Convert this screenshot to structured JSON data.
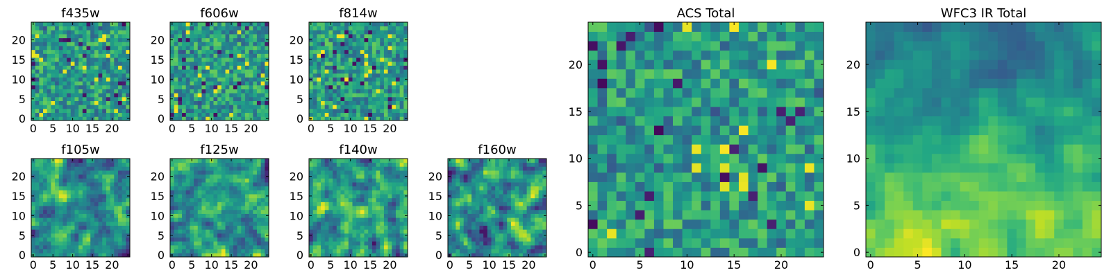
{
  "figure_title": "",
  "chart_data": [
    {
      "type": "heatmap",
      "title": "f435w",
      "colormap": "viridis",
      "grid_size": 25,
      "xlim": [
        0,
        25
      ],
      "ylim": [
        0,
        25
      ],
      "xticks": [
        0,
        5,
        10,
        15,
        20
      ],
      "yticks": [
        0,
        5,
        10,
        15,
        20
      ],
      "style": "noise",
      "seed": 11
    },
    {
      "type": "heatmap",
      "title": "f606w",
      "colormap": "viridis",
      "grid_size": 25,
      "xlim": [
        0,
        25
      ],
      "ylim": [
        0,
        25
      ],
      "xticks": [
        0,
        5,
        10,
        15,
        20
      ],
      "yticks": [
        0,
        5,
        10,
        15,
        20
      ],
      "style": "noise",
      "seed": 23
    },
    {
      "type": "heatmap",
      "title": "f814w",
      "colormap": "viridis",
      "grid_size": 25,
      "xlim": [
        0,
        25
      ],
      "ylim": [
        0,
        25
      ],
      "xticks": [
        0,
        5,
        10,
        15,
        20
      ],
      "yticks": [
        0,
        5,
        10,
        15,
        20
      ],
      "style": "noise",
      "seed": 37
    },
    {
      "type": "heatmap",
      "title": "f105w",
      "colormap": "viridis",
      "grid_size": 25,
      "xlim": [
        0,
        25
      ],
      "ylim": [
        0,
        25
      ],
      "xticks": [
        0,
        5,
        10,
        15,
        20
      ],
      "yticks": [
        0,
        5,
        10,
        15,
        20
      ],
      "style": "smooth",
      "seed": 41
    },
    {
      "type": "heatmap",
      "title": "f125w",
      "colormap": "viridis",
      "grid_size": 25,
      "xlim": [
        0,
        25
      ],
      "ylim": [
        0,
        25
      ],
      "xticks": [
        0,
        5,
        10,
        15,
        20
      ],
      "yticks": [
        0,
        5,
        10,
        15,
        20
      ],
      "style": "smooth",
      "seed": 53
    },
    {
      "type": "heatmap",
      "title": "f140w",
      "colormap": "viridis",
      "grid_size": 25,
      "xlim": [
        0,
        25
      ],
      "ylim": [
        0,
        25
      ],
      "xticks": [
        0,
        5,
        10,
        15,
        20
      ],
      "yticks": [
        0,
        5,
        10,
        15,
        20
      ],
      "style": "smooth",
      "seed": 67
    },
    {
      "type": "heatmap",
      "title": "f160w",
      "colormap": "viridis",
      "grid_size": 25,
      "xlim": [
        0,
        25
      ],
      "ylim": [
        0,
        25
      ],
      "xticks": [
        0,
        5,
        10,
        15,
        20
      ],
      "yticks": [
        0,
        5,
        10,
        15,
        20
      ],
      "style": "smooth",
      "seed": 79
    },
    {
      "type": "heatmap",
      "title": "ACS Total",
      "colormap": "viridis",
      "grid_size": 25,
      "xlim": [
        0,
        25
      ],
      "ylim": [
        0,
        25
      ],
      "xticks": [
        0,
        5,
        10,
        15,
        20
      ],
      "yticks": [
        0,
        5,
        10,
        15,
        20
      ],
      "style": "noise",
      "seed": 97
    },
    {
      "type": "heatmap",
      "title": "WFC3 IR Total",
      "colormap": "viridis",
      "grid_size": 25,
      "xlim": [
        0,
        25
      ],
      "ylim": [
        0,
        25
      ],
      "xticks": [
        0,
        5,
        10,
        15,
        20
      ],
      "yticks": [
        0,
        5,
        10,
        15,
        20
      ],
      "style": "gradient",
      "seed": 101
    }
  ]
}
